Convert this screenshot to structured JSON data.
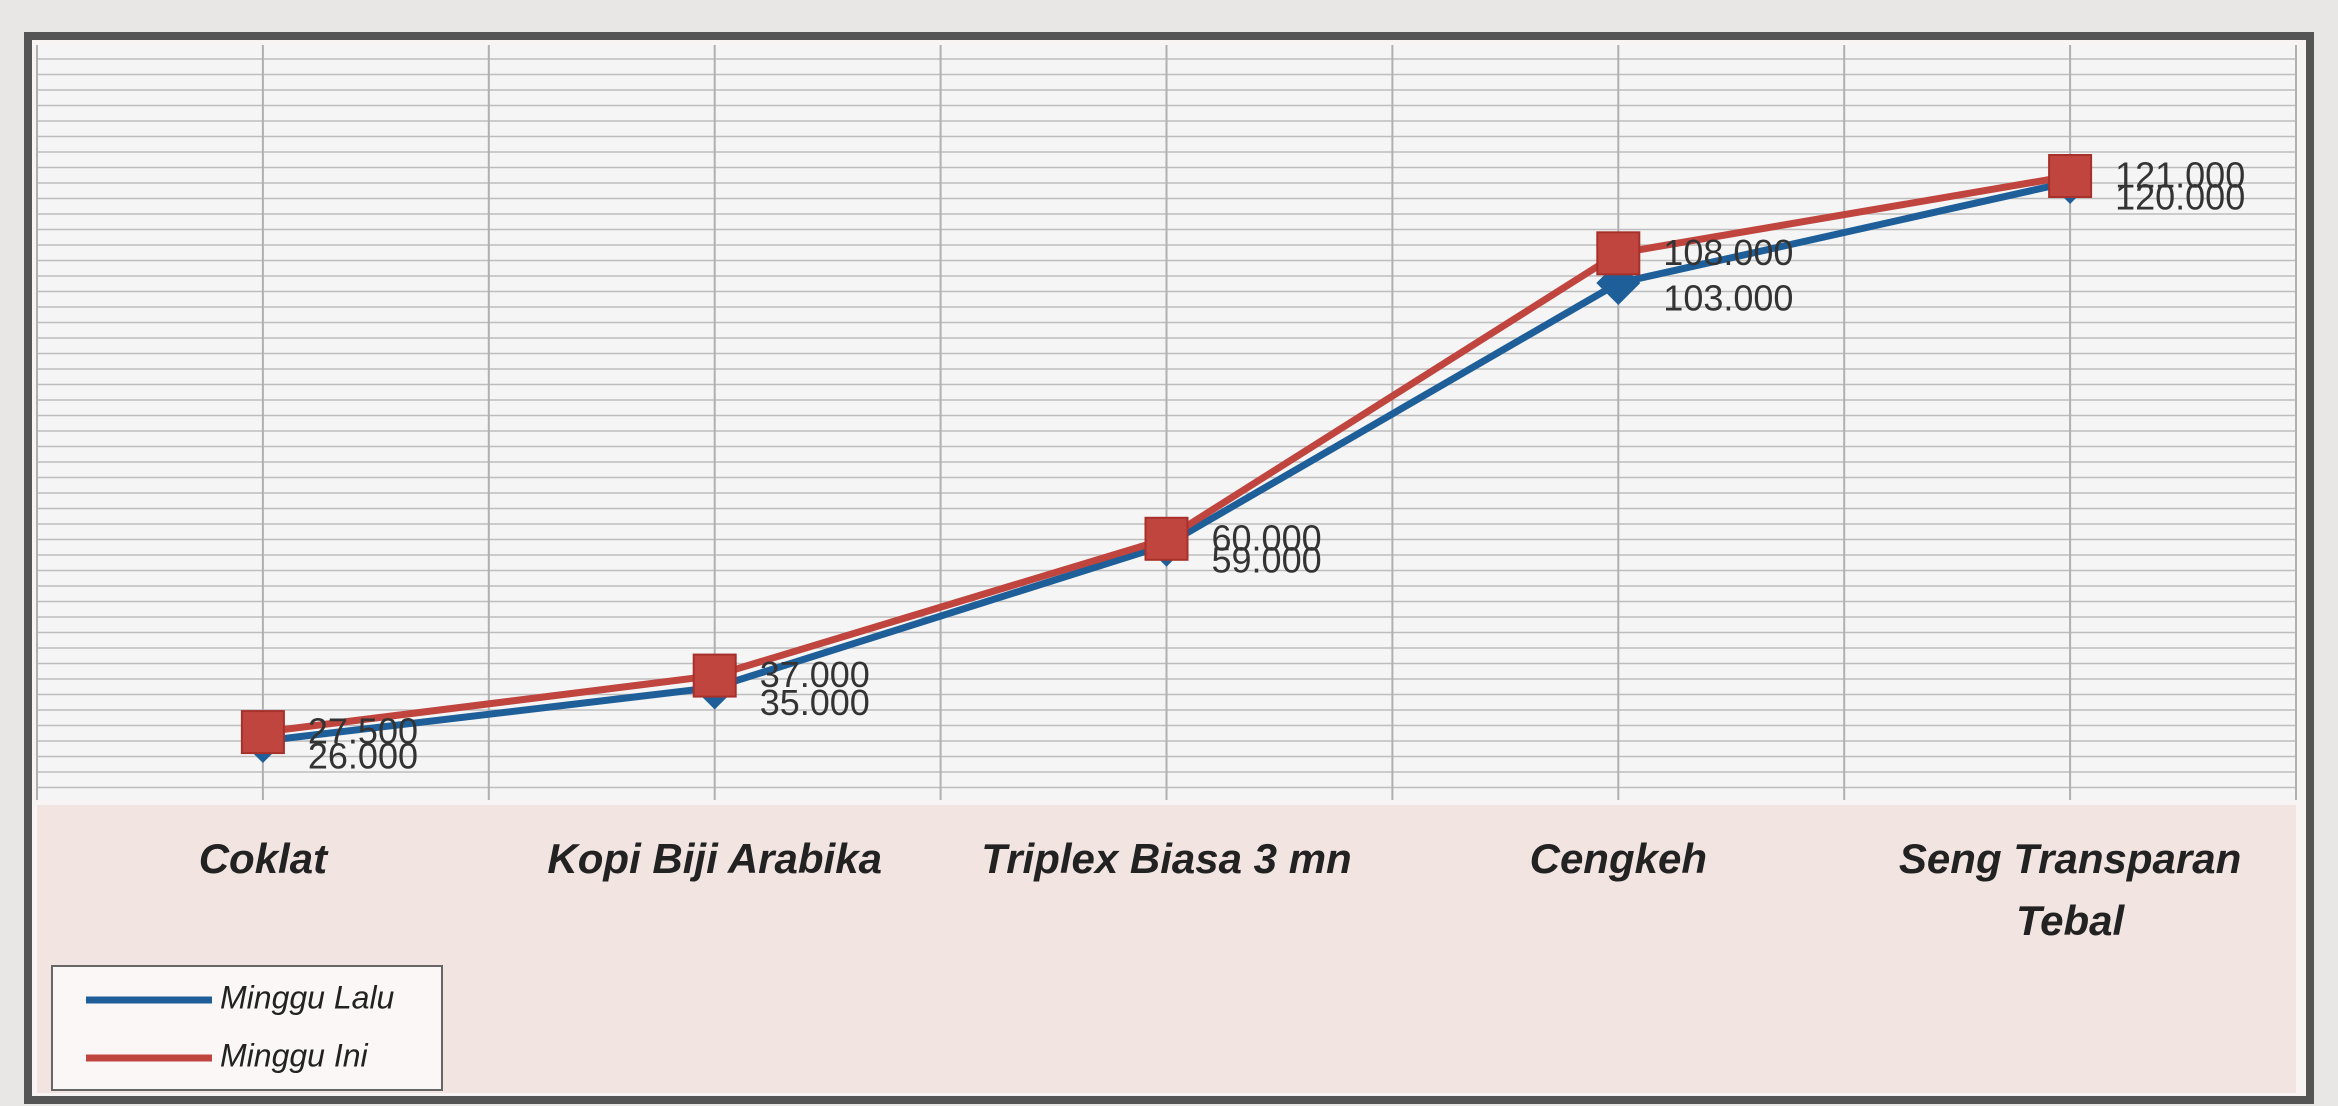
{
  "chart_data": {
    "type": "line",
    "categories": [
      "Coklat",
      "Kopi Biji Arabika",
      "Triplex Biasa 3 mn",
      "Cengkeh",
      "Seng Transparan Tebal"
    ],
    "series": [
      {
        "name": "Minggu Lalu",
        "color": "#1f5f99",
        "marker": "diamond",
        "values": [
          26000,
          35000,
          59000,
          103000,
          120000
        ],
        "value_labels": [
          "26.000",
          "35.000",
          "59.000",
          "103.000",
          "120.000"
        ]
      },
      {
        "name": "Minggu Ini",
        "color": "#c0453f",
        "marker": "square",
        "values": [
          27500,
          37000,
          60000,
          108000,
          121000
        ],
        "value_labels": [
          "27.500",
          "37.000",
          "60.000",
          "108.000",
          "121.000"
        ]
      }
    ],
    "grid": true,
    "legend": "bottom-left"
  }
}
